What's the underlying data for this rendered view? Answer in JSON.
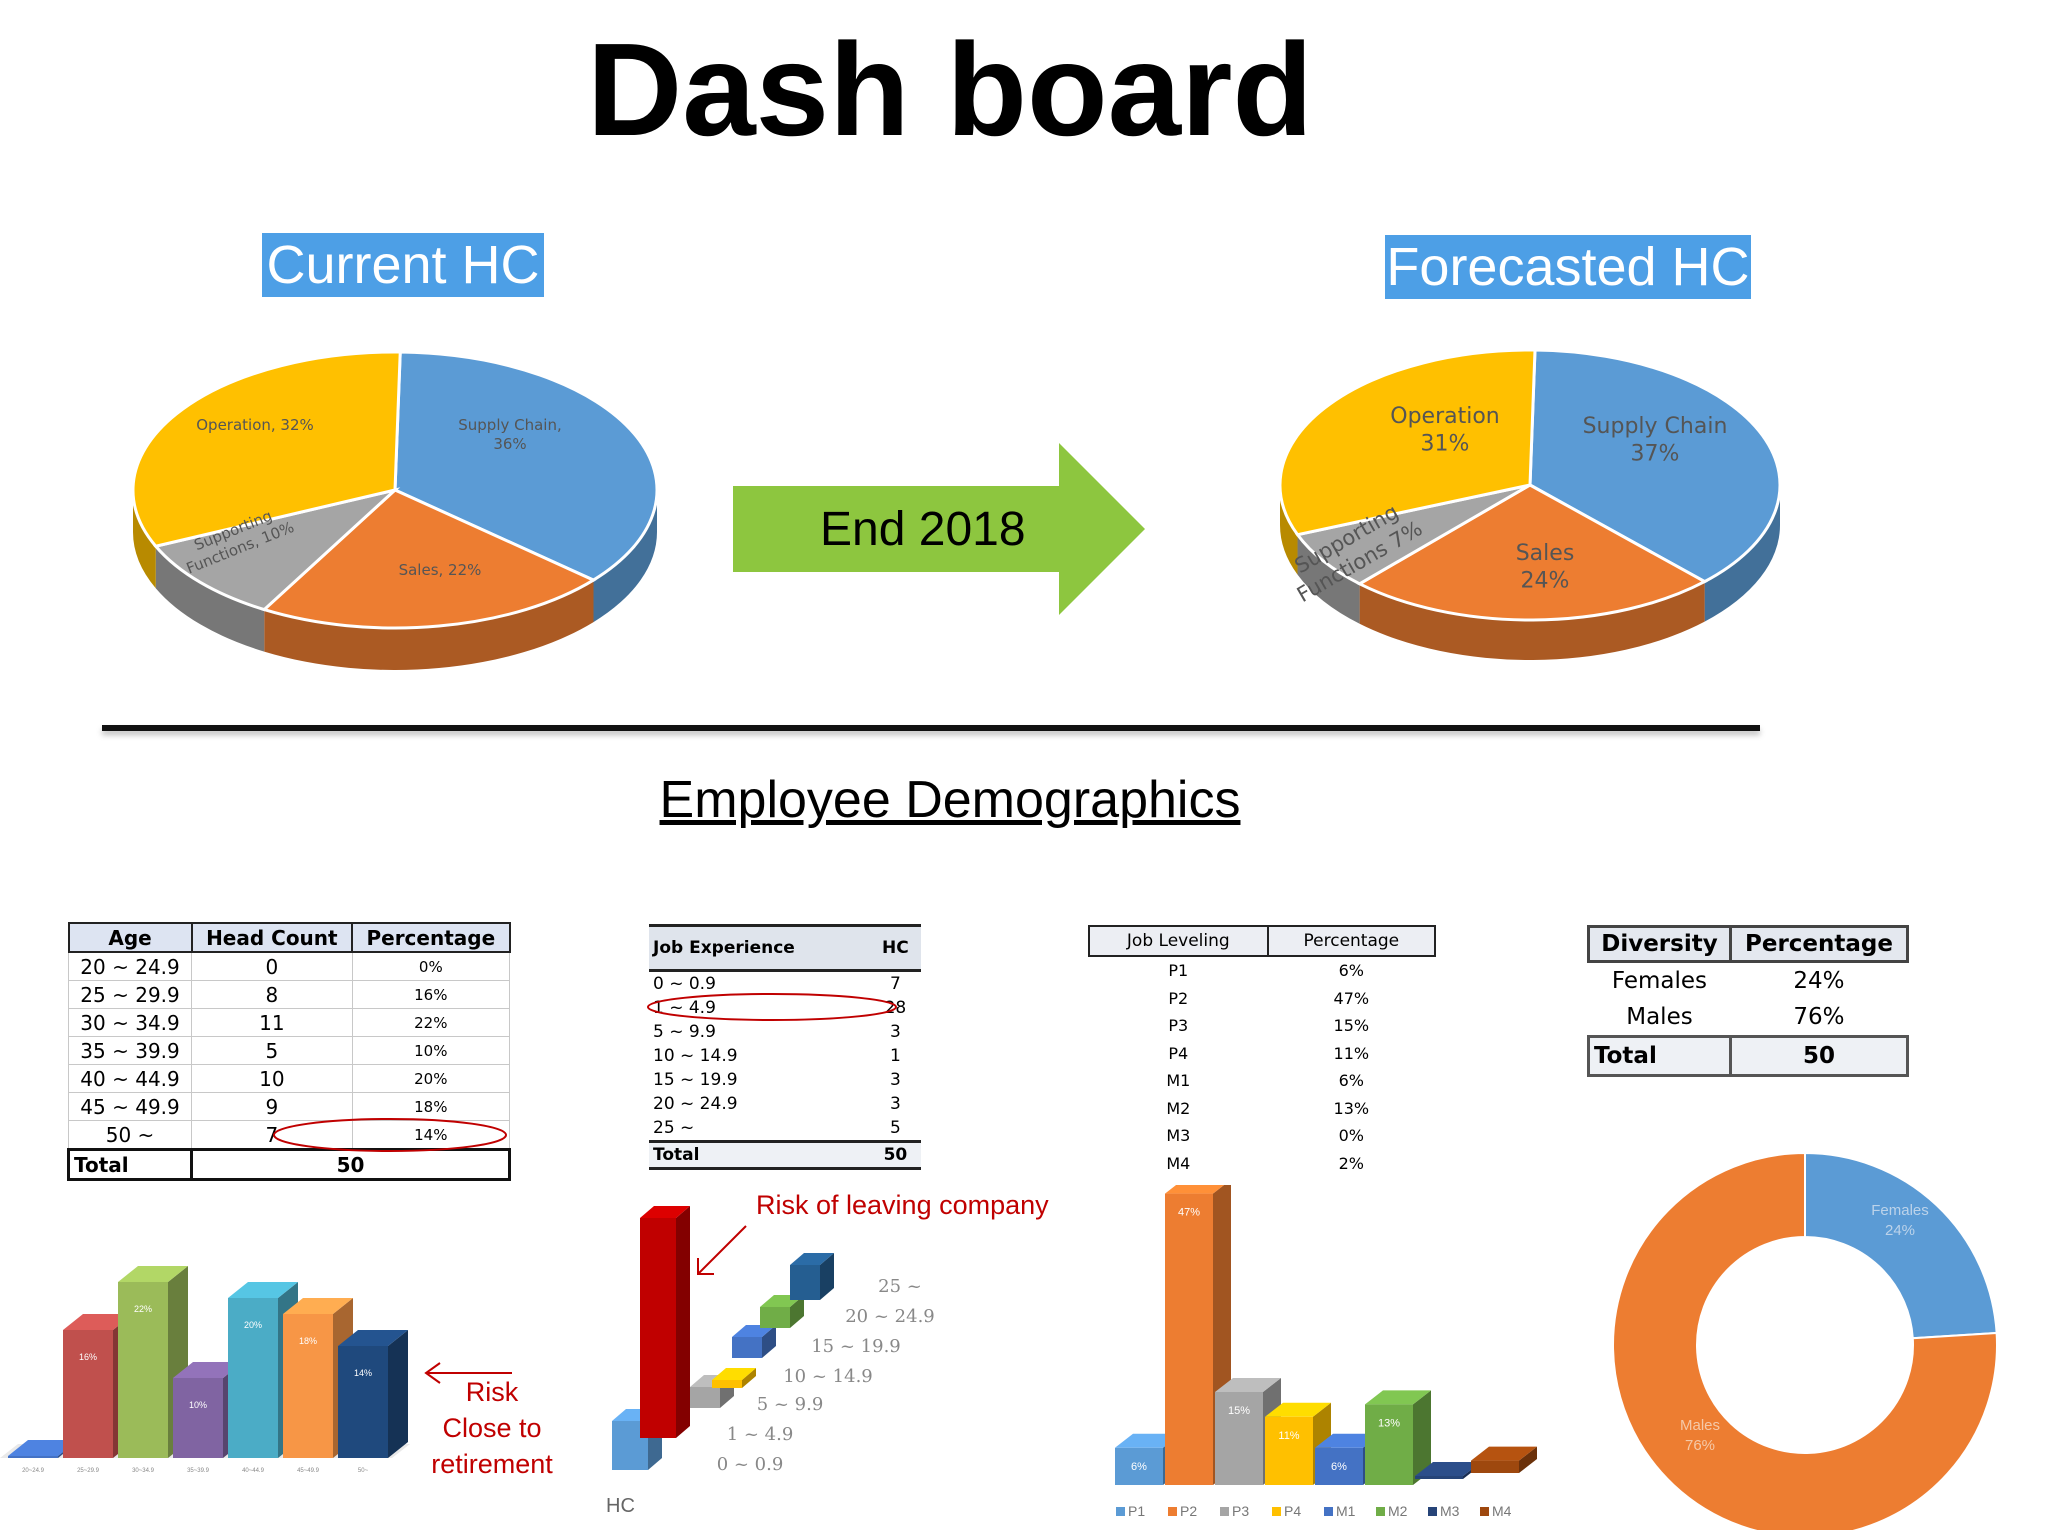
{
  "title": "Dash board",
  "current_badge": "Current HC",
  "forecast_badge": "Forecasted HC",
  "arrow_label": "End 2018",
  "demographics_title": "Employee Demographics",
  "colors": {
    "blue": "#5b9bd5",
    "orange": "#ed7d31",
    "gray": "#a5a5a5",
    "yellow": "#ffc000",
    "badge": "#4d9fe6",
    "arrow": "#8dc63f",
    "risk": "#c00000"
  },
  "age_table": {
    "headers": [
      "Age",
      "Head Count",
      "Percentage"
    ],
    "rows": [
      [
        "20 ~ 24.9",
        "0",
        "0%"
      ],
      [
        "25 ~ 29.9",
        "8",
        "16%"
      ],
      [
        "30 ~ 34.9",
        "11",
        "22%"
      ],
      [
        "35 ~ 39.9",
        "5",
        "10%"
      ],
      [
        "40 ~ 44.9",
        "10",
        "20%"
      ],
      [
        "45 ~ 49.9",
        "9",
        "18%"
      ],
      [
        "50 ~",
        "7",
        "14%"
      ]
    ],
    "total_label": "Total",
    "total_value": "50"
  },
  "exp_table": {
    "headers": [
      "Job Experience",
      "HC"
    ],
    "rows": [
      [
        "0 ~ 0.9",
        "7"
      ],
      [
        "1 ~ 4.9",
        "28"
      ],
      [
        "5 ~ 9.9",
        "3"
      ],
      [
        "10 ~ 14.9",
        "1"
      ],
      [
        "15 ~ 19.9",
        "3"
      ],
      [
        "20 ~ 24.9",
        "3"
      ],
      [
        "25 ~",
        "5"
      ]
    ],
    "total_label": "Total",
    "total_value": "50"
  },
  "level_table": {
    "headers": [
      "Job Leveling",
      "Percentage"
    ],
    "rows": [
      [
        "P1",
        "6%"
      ],
      [
        "P2",
        "47%"
      ],
      [
        "P3",
        "15%"
      ],
      [
        "P4",
        "11%"
      ],
      [
        "M1",
        "6%"
      ],
      [
        "M2",
        "13%"
      ],
      [
        "M3",
        "0%"
      ],
      [
        "M4",
        "2%"
      ]
    ]
  },
  "div_table": {
    "headers": [
      "Diversity",
      "Percentage"
    ],
    "rows": [
      [
        "Females",
        "24%"
      ],
      [
        "Males",
        "76%"
      ]
    ],
    "total_label": "Total",
    "total_value": "50"
  },
  "annotations": {
    "retirement": [
      "Risk",
      "Close to",
      "retirement"
    ],
    "leaving": "Risk of leaving company",
    "hc_axis": "HC"
  },
  "chart_data": [
    {
      "type": "pie",
      "id": "current",
      "categories": [
        "Supply Chain",
        "Sales",
        "Supporting Functions",
        "Operation"
      ],
      "values": [
        36,
        22,
        10,
        32
      ],
      "labels": [
        "Supply Chain, 36%",
        "Sales, 22%",
        "Supporting Functions, 10%",
        "Operation, 32%"
      ]
    },
    {
      "type": "pie",
      "id": "forecast",
      "categories": [
        "Supply Chain",
        "Sales",
        "Supporting Functions",
        "Operation"
      ],
      "values": [
        37,
        24,
        7,
        31
      ],
      "labels": [
        "Supply Chain 37%",
        "Sales 24%",
        "Supporting Functions 7%",
        "Operation 31%"
      ]
    },
    {
      "type": "bar",
      "id": "age",
      "categories": [
        "20~24.9",
        "25~29.9",
        "30~34.9",
        "35~39.9",
        "40~44.9",
        "45~49.9",
        "50~"
      ],
      "values": [
        0,
        16,
        22,
        10,
        20,
        18,
        14
      ],
      "labels": [
        "0%",
        "16%",
        "22%",
        "10%",
        "20%",
        "18%",
        "14%"
      ],
      "colors": [
        "#4472c4",
        "#c0504d",
        "#9bbb59",
        "#8064a2",
        "#4bacc6",
        "#f79646",
        "#1f497d"
      ]
    },
    {
      "type": "bar",
      "id": "experience",
      "categories": [
        "0 ~ 0.9",
        "1 ~ 4.9",
        "5 ~ 9.9",
        "10 ~ 14.9",
        "15 ~ 19.9",
        "20 ~ 24.9",
        "25 ~"
      ],
      "values": [
        7,
        28,
        3,
        1,
        3,
        3,
        5
      ],
      "colors": [
        "#5b9bd5",
        "#c00000",
        "#a5a5a5",
        "#ffc000",
        "#4472c4",
        "#70ad47",
        "#255e91"
      ]
    },
    {
      "type": "bar",
      "id": "leveling",
      "categories": [
        "P1",
        "P2",
        "P3",
        "P4",
        "M1",
        "M2",
        "M3",
        "M4"
      ],
      "values": [
        6,
        47,
        15,
        11,
        6,
        13,
        0,
        2
      ],
      "labels": [
        "6%",
        "47%",
        "15%",
        "11%",
        "6%",
        "13%",
        "0%",
        "2%"
      ],
      "colors": [
        "#5b9bd5",
        "#ed7d31",
        "#a5a5a5",
        "#ffc000",
        "#4472c4",
        "#70ad47",
        "#264478",
        "#9e480e"
      ]
    },
    {
      "type": "pie",
      "id": "diversity",
      "categories": [
        "Females",
        "Males"
      ],
      "values": [
        24,
        76
      ],
      "labels": [
        "Females 24%",
        "Males 76%"
      ]
    }
  ]
}
